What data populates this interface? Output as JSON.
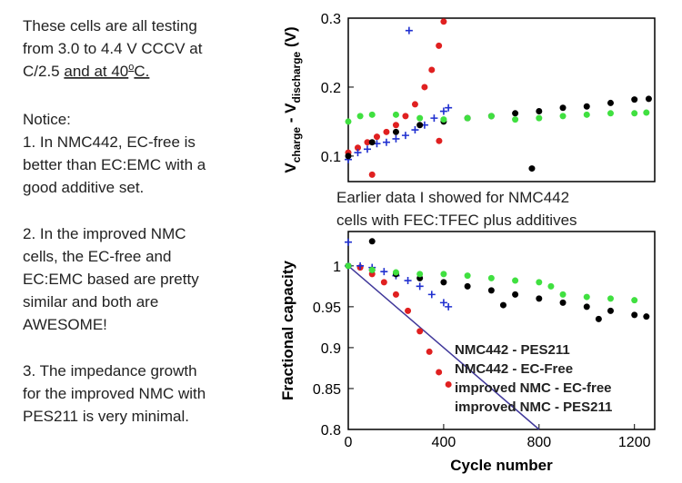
{
  "notes": {
    "p1": [
      "These cells are all testing",
      "from 3.0 to 4.4 V CCCV at",
      [
        "C/2.5 ",
        "and at 40",
        "o",
        "C."
      ]
    ],
    "p2": [
      "Notice:",
      "1. In NMC442, EC-free is",
      "better than EC:EMC with a",
      "good additive set."
    ],
    "p3": [
      "2. In the improved NMC",
      "cells, the EC-free and",
      "EC:EMC based are pretty",
      "similar and both are",
      "AWESOME!"
    ],
    "p4": [
      "3. The impedance growth",
      "for the improved NMC with",
      "PES211 is very minimal."
    ]
  },
  "chart_data": [
    {
      "type": "scatter",
      "ylabel": [
        "V",
        "charge",
        " - V",
        "discharge",
        " (V)"
      ],
      "xlim": [
        0,
        1285
      ],
      "ylim": [
        0.063,
        0.3
      ],
      "yticks": [
        0.1,
        0.2,
        0.3
      ],
      "annotation": [
        "Earlier data I showed for NMC442",
        "cells with FEC:TFEC plus additives"
      ],
      "annotation_color": "#7050a8",
      "series": [
        {
          "name": "NMC442 - PES211",
          "color": "#e02020",
          "marker": "circle",
          "x": [
            0,
            40,
            80,
            120,
            160,
            200,
            240,
            280,
            320,
            350,
            380,
            400,
            100,
            381
          ],
          "y": [
            0.105,
            0.112,
            0.12,
            0.128,
            0.135,
            0.145,
            0.158,
            0.175,
            0.2,
            0.225,
            0.26,
            0.295,
            0.073,
            0.122
          ]
        },
        {
          "name": "NMC442 - EC-Free",
          "color": "#2030d0",
          "marker": "plus",
          "x": [
            0,
            40,
            80,
            120,
            160,
            200,
            240,
            280,
            320,
            360,
            400,
            420,
            255
          ],
          "y": [
            0.095,
            0.105,
            0.11,
            0.118,
            0.12,
            0.125,
            0.13,
            0.138,
            0.145,
            0.155,
            0.165,
            0.17,
            0.282
          ]
        },
        {
          "name": "improved NMC - EC-free",
          "color": "#000000",
          "marker": "circle",
          "x": [
            0,
            100,
            200,
            300,
            400,
            500,
            600,
            700,
            800,
            900,
            1000,
            1100,
            1200,
            1260,
            770
          ],
          "y": [
            0.1,
            0.12,
            0.135,
            0.145,
            0.15,
            0.155,
            0.158,
            0.162,
            0.165,
            0.17,
            0.172,
            0.177,
            0.182,
            0.183,
            0.082
          ]
        },
        {
          "name": "improved NMC - PES211",
          "color": "#40e040",
          "marker": "circle",
          "x": [
            0,
            50,
            100,
            200,
            300,
            400,
            500,
            600,
            700,
            800,
            900,
            1000,
            1100,
            1200,
            1250
          ],
          "y": [
            0.15,
            0.158,
            0.16,
            0.16,
            0.155,
            0.153,
            0.155,
            0.158,
            0.153,
            0.155,
            0.158,
            0.16,
            0.162,
            0.162,
            0.163
          ]
        }
      ]
    },
    {
      "type": "scatter",
      "ylabel": [
        "Fractional capacity"
      ],
      "xlabel": "Cycle number",
      "xlim": [
        0,
        1285
      ],
      "xticks": [
        0,
        400,
        800,
        1200
      ],
      "ylim": [
        0.8,
        1.042
      ],
      "yticks": [
        0.8,
        0.85,
        0.9,
        0.95,
        1
      ],
      "legend": "lower right",
      "reference_line": {
        "x": [
          0,
          800
        ],
        "y": [
          1,
          0.8
        ],
        "color": "#40389a"
      },
      "series": [
        {
          "name": "NMC442 - PES211",
          "color": "#e02020",
          "marker": "circle",
          "x": [
            0,
            50,
            100,
            150,
            200,
            250,
            300,
            340,
            380,
            420
          ],
          "y": [
            1,
            0.998,
            0.99,
            0.98,
            0.965,
            0.945,
            0.92,
            0.895,
            0.87,
            0.855
          ]
        },
        {
          "name": "NMC442 - EC-Free",
          "color": "#2030d0",
          "marker": "plus",
          "x": [
            0,
            50,
            100,
            150,
            200,
            250,
            300,
            350,
            400,
            420,
            0
          ],
          "y": [
            1,
            1,
            0.998,
            0.993,
            0.988,
            0.982,
            0.975,
            0.965,
            0.955,
            0.95,
            1.029
          ]
        },
        {
          "name": "improved NMC - EC-free",
          "color": "#000000",
          "marker": "circle",
          "x": [
            0,
            100,
            200,
            300,
            400,
            500,
            600,
            700,
            800,
            900,
            1000,
            1100,
            1200,
            1250,
            100,
            650,
            1050
          ],
          "y": [
            1,
            0.995,
            0.99,
            0.985,
            0.98,
            0.975,
            0.97,
            0.965,
            0.96,
            0.955,
            0.95,
            0.945,
            0.94,
            0.938,
            1.03,
            0.952,
            0.935
          ]
        },
        {
          "name": "improved NMC - PES211",
          "color": "#40e040",
          "marker": "circle",
          "x": [
            0,
            100,
            200,
            300,
            400,
            500,
            600,
            700,
            800,
            850,
            900,
            1000,
            1100,
            1200
          ],
          "y": [
            1,
            0.995,
            0.992,
            0.99,
            0.99,
            0.988,
            0.985,
            0.982,
            0.98,
            0.975,
            0.965,
            0.962,
            0.96,
            0.958
          ]
        }
      ]
    }
  ]
}
